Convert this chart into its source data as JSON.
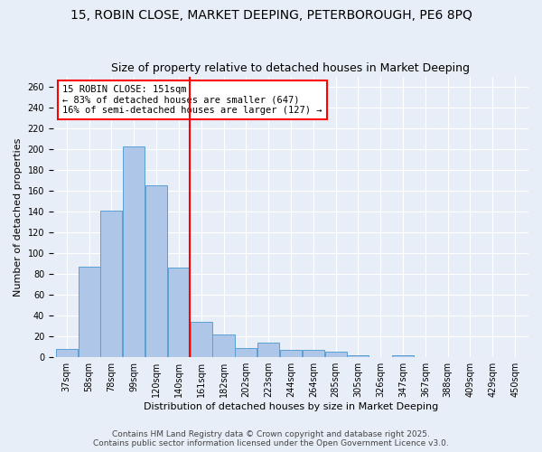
{
  "title1": "15, ROBIN CLOSE, MARKET DEEPING, PETERBOROUGH, PE6 8PQ",
  "title2": "Size of property relative to detached houses in Market Deeping",
  "xlabel": "Distribution of detached houses by size in Market Deeping",
  "ylabel": "Number of detached properties",
  "bar_values": [
    8,
    87,
    141,
    203,
    165,
    86,
    34,
    22,
    9,
    14,
    7,
    7,
    5,
    2,
    0,
    2,
    0,
    0,
    0,
    0,
    0
  ],
  "categories": [
    "37sqm",
    "58sqm",
    "78sqm",
    "99sqm",
    "120sqm",
    "140sqm",
    "161sqm",
    "182sqm",
    "202sqm",
    "223sqm",
    "244sqm",
    "264sqm",
    "285sqm",
    "305sqm",
    "326sqm",
    "347sqm",
    "367sqm",
    "388sqm",
    "409sqm",
    "429sqm",
    "450sqm"
  ],
  "bar_color": "#aec6e8",
  "bar_edge_color": "#5a9fd4",
  "vline_color": "red",
  "vline_pos": 6,
  "annotation_text": "15 ROBIN CLOSE: 151sqm\n← 83% of detached houses are smaller (647)\n16% of semi-detached houses are larger (127) →",
  "annotation_box_color": "white",
  "annotation_box_edge": "red",
  "ylim": [
    0,
    270
  ],
  "yticks": [
    0,
    20,
    40,
    60,
    80,
    100,
    120,
    140,
    160,
    180,
    200,
    220,
    240,
    260
  ],
  "bg_color": "#e8eef7",
  "footer": "Contains HM Land Registry data © Crown copyright and database right 2025.\nContains public sector information licensed under the Open Government Licence v3.0.",
  "title1_fontsize": 10,
  "title2_fontsize": 9,
  "xlabel_fontsize": 8,
  "ylabel_fontsize": 8,
  "annotation_fontsize": 7.5,
  "footer_fontsize": 6.5,
  "tick_fontsize": 7
}
